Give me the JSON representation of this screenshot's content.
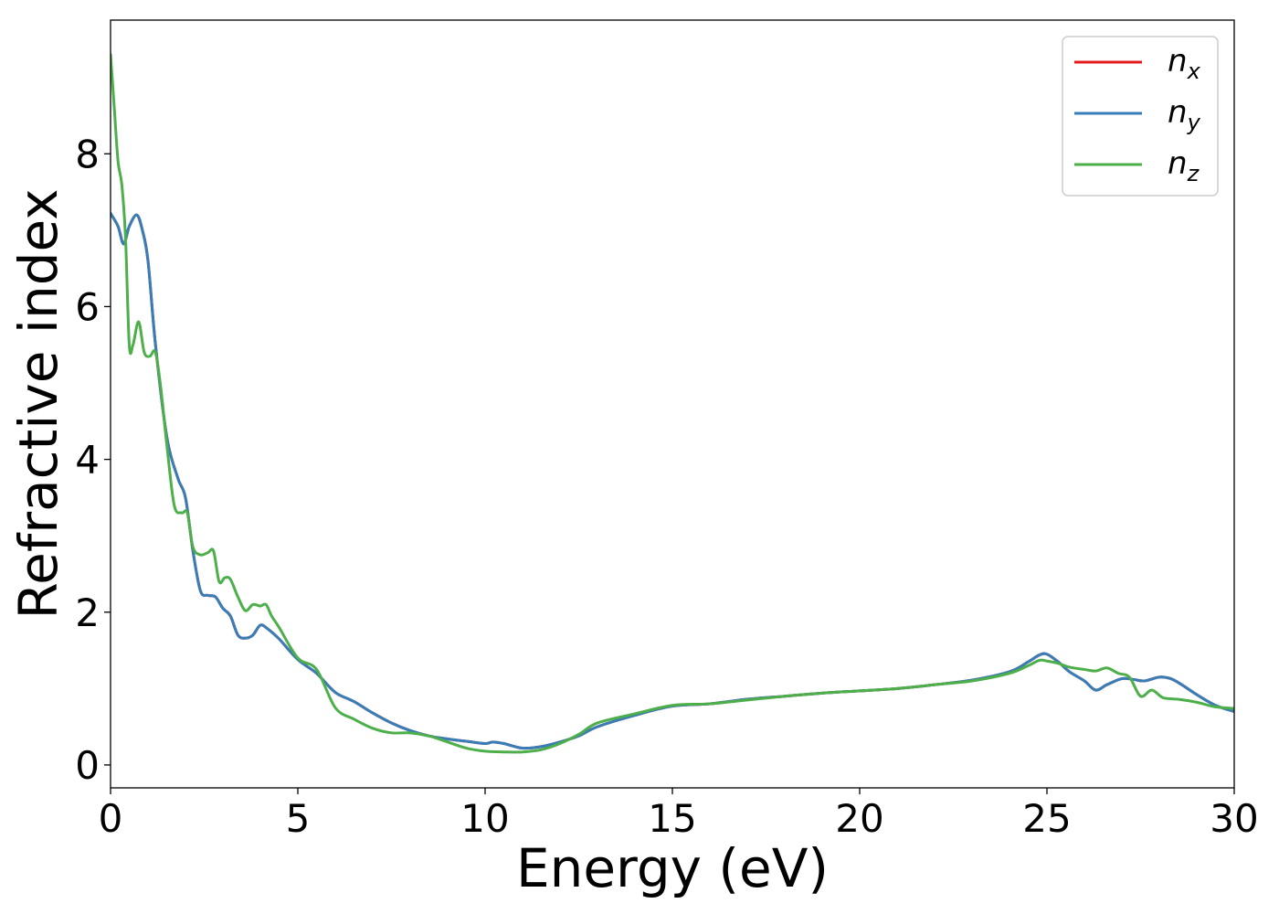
{
  "chart_data": {
    "type": "line",
    "title": "",
    "xlabel": "Energy (eV)",
    "ylabel": "Refractive index",
    "xlim": [
      0,
      30
    ],
    "ylim": [
      -0.3,
      9.75
    ],
    "xticks": [
      0,
      5,
      10,
      15,
      20,
      25,
      30
    ],
    "yticks": [
      0,
      2,
      4,
      6,
      8
    ],
    "grid": false,
    "legend_position": "top-right",
    "series": [
      {
        "name": "n",
        "sub": "x",
        "color": "#e41a1c",
        "x": [
          0,
          0.2,
          0.35,
          0.5,
          0.7,
          0.85,
          1.0,
          1.2,
          1.5,
          1.8,
          2.0,
          2.2,
          2.4,
          2.6,
          2.8,
          3.0,
          3.2,
          3.4,
          3.6,
          3.8,
          4.0,
          4.2,
          4.5,
          5.0,
          5.5,
          6.0,
          6.5,
          7.0,
          7.5,
          8.0,
          8.5,
          9.0,
          9.5,
          10.0,
          10.2,
          10.5,
          11.0,
          11.5,
          12.0,
          12.5,
          13.0,
          14.0,
          15.0,
          16.0,
          17.0,
          18.0,
          19.0,
          20.0,
          21.0,
          22.0,
          23.0,
          24.0,
          24.5,
          24.8,
          25.0,
          25.3,
          25.6,
          26.0,
          26.3,
          26.6,
          27.0,
          27.3,
          27.6,
          28.0,
          28.3,
          28.6,
          29.0,
          29.5,
          30.0
        ],
        "y": [
          7.22,
          7.05,
          6.82,
          7.05,
          7.2,
          7.0,
          6.6,
          5.5,
          4.3,
          3.75,
          3.5,
          2.8,
          2.28,
          2.22,
          2.2,
          2.05,
          1.95,
          1.7,
          1.66,
          1.7,
          1.83,
          1.78,
          1.65,
          1.38,
          1.2,
          0.95,
          0.83,
          0.68,
          0.55,
          0.45,
          0.38,
          0.34,
          0.31,
          0.28,
          0.3,
          0.28,
          0.22,
          0.24,
          0.3,
          0.38,
          0.5,
          0.65,
          0.77,
          0.8,
          0.86,
          0.9,
          0.94,
          0.97,
          1.0,
          1.05,
          1.11,
          1.22,
          1.35,
          1.44,
          1.45,
          1.35,
          1.22,
          1.1,
          0.98,
          1.05,
          1.13,
          1.12,
          1.1,
          1.15,
          1.13,
          1.05,
          0.92,
          0.78,
          0.7
        ]
      },
      {
        "name": "n",
        "sub": "y",
        "color": "#377eb8",
        "x": [
          0,
          0.2,
          0.35,
          0.5,
          0.7,
          0.85,
          1.0,
          1.2,
          1.5,
          1.8,
          2.0,
          2.2,
          2.4,
          2.6,
          2.8,
          3.0,
          3.2,
          3.4,
          3.6,
          3.8,
          4.0,
          4.2,
          4.5,
          5.0,
          5.5,
          6.0,
          6.5,
          7.0,
          7.5,
          8.0,
          8.5,
          9.0,
          9.5,
          10.0,
          10.2,
          10.5,
          11.0,
          11.5,
          12.0,
          12.5,
          13.0,
          14.0,
          15.0,
          16.0,
          17.0,
          18.0,
          19.0,
          20.0,
          21.0,
          22.0,
          23.0,
          24.0,
          24.5,
          24.8,
          25.0,
          25.3,
          25.6,
          26.0,
          26.3,
          26.6,
          27.0,
          27.3,
          27.6,
          28.0,
          28.3,
          28.6,
          29.0,
          29.5,
          30.0
        ],
        "y": [
          7.22,
          7.05,
          6.82,
          7.05,
          7.2,
          7.0,
          6.6,
          5.5,
          4.3,
          3.75,
          3.5,
          2.8,
          2.28,
          2.22,
          2.2,
          2.05,
          1.95,
          1.7,
          1.66,
          1.7,
          1.83,
          1.78,
          1.65,
          1.38,
          1.2,
          0.95,
          0.83,
          0.68,
          0.55,
          0.45,
          0.38,
          0.34,
          0.31,
          0.28,
          0.3,
          0.28,
          0.22,
          0.24,
          0.3,
          0.38,
          0.5,
          0.65,
          0.77,
          0.8,
          0.86,
          0.9,
          0.94,
          0.97,
          1.0,
          1.05,
          1.11,
          1.22,
          1.35,
          1.44,
          1.45,
          1.35,
          1.22,
          1.1,
          0.98,
          1.05,
          1.13,
          1.12,
          1.1,
          1.15,
          1.13,
          1.05,
          0.92,
          0.78,
          0.7
        ]
      },
      {
        "name": "n",
        "sub": "z",
        "color": "#4daf4a",
        "x": [
          0,
          0.1,
          0.2,
          0.3,
          0.4,
          0.5,
          0.6,
          0.75,
          0.9,
          1.05,
          1.2,
          1.35,
          1.5,
          1.7,
          1.9,
          2.05,
          2.2,
          2.4,
          2.6,
          2.75,
          2.9,
          3.05,
          3.2,
          3.4,
          3.6,
          3.8,
          4.0,
          4.15,
          4.3,
          4.5,
          5.0,
          5.5,
          6.0,
          6.5,
          7.0,
          7.5,
          8.0,
          8.5,
          9.0,
          9.5,
          10.0,
          10.5,
          11.0,
          11.5,
          12.0,
          12.5,
          13.0,
          14.0,
          15.0,
          16.0,
          17.0,
          18.0,
          19.0,
          20.0,
          21.0,
          22.0,
          23.0,
          24.0,
          24.5,
          24.8,
          25.0,
          25.3,
          25.6,
          26.0,
          26.3,
          26.6,
          26.9,
          27.2,
          27.5,
          27.8,
          28.1,
          28.5,
          29.0,
          29.5,
          30.0
        ],
        "y": [
          9.3,
          8.6,
          7.9,
          7.6,
          6.9,
          5.5,
          5.5,
          5.8,
          5.4,
          5.35,
          5.4,
          4.9,
          4.2,
          3.4,
          3.3,
          3.3,
          2.85,
          2.75,
          2.78,
          2.8,
          2.4,
          2.45,
          2.43,
          2.2,
          2.02,
          2.1,
          2.08,
          2.1,
          1.95,
          1.8,
          1.4,
          1.25,
          0.75,
          0.6,
          0.48,
          0.42,
          0.42,
          0.38,
          0.3,
          0.22,
          0.18,
          0.17,
          0.17,
          0.2,
          0.28,
          0.4,
          0.55,
          0.67,
          0.78,
          0.8,
          0.85,
          0.9,
          0.94,
          0.97,
          1.0,
          1.05,
          1.1,
          1.2,
          1.3,
          1.37,
          1.36,
          1.33,
          1.28,
          1.25,
          1.23,
          1.27,
          1.2,
          1.15,
          0.9,
          0.98,
          0.88,
          0.86,
          0.82,
          0.76,
          0.74
        ]
      }
    ]
  }
}
